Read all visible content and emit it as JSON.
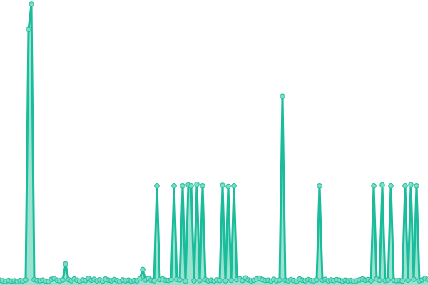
{
  "chart_data": {
    "type": "area",
    "title": "",
    "xlabel": "",
    "ylabel": "",
    "ylim": [
      0,
      100
    ],
    "grid": false,
    "legend": "none",
    "colors": {
      "line": "#1abc9c",
      "area": "#8fe0cc",
      "marker_fill": "#7fdcc4",
      "marker_stroke": "#1abc9c"
    },
    "values": [
      1.2,
      1.0,
      0.8,
      1.1,
      0.9,
      1.0,
      0.8,
      1.1,
      1.0,
      1.3,
      91,
      100,
      1.4,
      1.1,
      1.0,
      1.2,
      0.9,
      0.8,
      1.5,
      1.8,
      1.2,
      1.0,
      1.3,
      7,
      1.4,
      1.0,
      1.6,
      1.2,
      0.9,
      1.3,
      1.1,
      1.8,
      1.2,
      1.5,
      1.0,
      1.3,
      0.9,
      1.6,
      1.2,
      1.0,
      1.4,
      1.1,
      0.8,
      1.3,
      1.0,
      1.2,
      0.9,
      1.1,
      1.0,
      1.7,
      5,
      1.3,
      1.8,
      1.2,
      1.0,
      35,
      1.4,
      1.6,
      1.2,
      1.1,
      1.4,
      35,
      1.5,
      1.3,
      35,
      0.9,
      35.3,
      35,
      1.0,
      35.5,
      1.1,
      35,
      1.4,
      1.0,
      1.2,
      0.9,
      1.3,
      1.1,
      35.2,
      1.0,
      34.8,
      1.2,
      35,
      1.4,
      1.7,
      1.1,
      2.0,
      1.3,
      1.0,
      1.2,
      1.6,
      1.9,
      1.4,
      1.1,
      1.2,
      0.9,
      1.5,
      1.0,
      1.3,
      67,
      1.2,
      1.0,
      1.4,
      1.1,
      0.9,
      1.6,
      1.2,
      1.0,
      1.4,
      1.1,
      1.0,
      1.3,
      35,
      1.2,
      1.5,
      1.0,
      1.3,
      1.1,
      1.4,
      1.2,
      0.9,
      1.2,
      1.0,
      1.1,
      0.9,
      1.0,
      1.3,
      1.6,
      1.2,
      1.4,
      1.0,
      35,
      1.6,
      1.2,
      35.3,
      1.1,
      1.3,
      35,
      1.2,
      1.0,
      1.1,
      0.9,
      35,
      1.2,
      35.4,
      1.5,
      35,
      1.0,
      1.3,
      1.8,
      1.4
    ]
  }
}
